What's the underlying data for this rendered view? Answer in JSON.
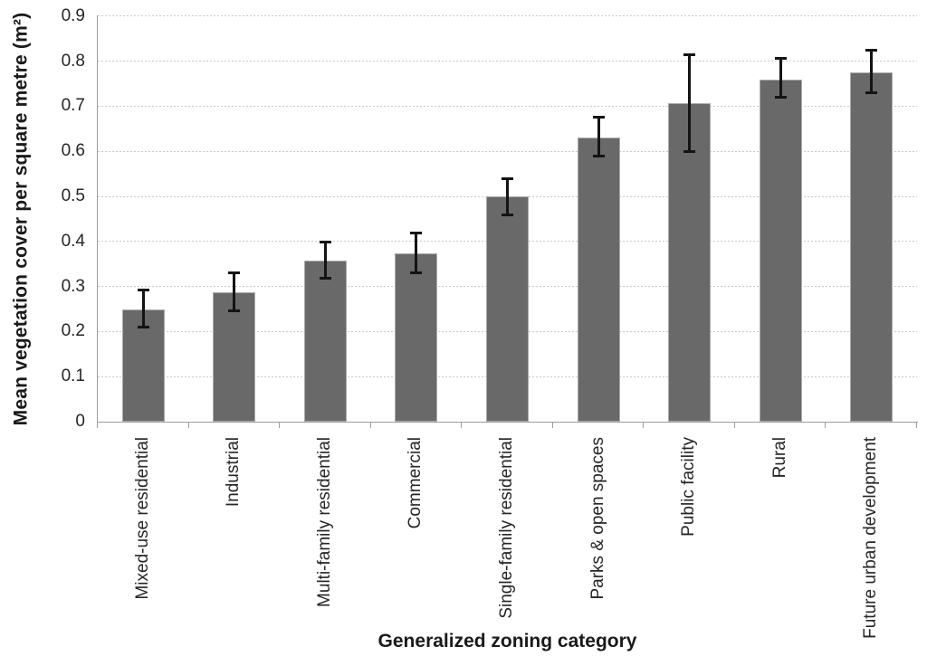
{
  "chart_data": {
    "type": "bar",
    "title": "",
    "xlabel": "Generalized zoning category",
    "ylabel": "Mean vegetation cover per square metre (m²)",
    "categories": [
      "Mixed-use residential",
      "Industrial",
      "Multi-family residential",
      "Commercial",
      "Single-family residential",
      "Parks & open spaces",
      "Public facility",
      "Rural",
      "Future urban development"
    ],
    "values": [
      0.25,
      0.287,
      0.357,
      0.373,
      0.499,
      0.63,
      0.707,
      0.76,
      0.776
    ],
    "error_low": [
      0.209,
      0.244,
      0.318,
      0.329,
      0.458,
      0.588,
      0.598,
      0.718,
      0.729
    ],
    "error_high": [
      0.294,
      0.331,
      0.4,
      0.419,
      0.54,
      0.677,
      0.816,
      0.807,
      0.825
    ],
    "ylim": [
      0,
      0.9
    ],
    "y_tick_labels": [
      "0",
      "0.1",
      "0.2",
      "0.3",
      "0.4",
      "0.5",
      "0.6",
      "0.7",
      "0.8",
      "0.9"
    ],
    "grid": "horizontal-dashed",
    "legend": "none",
    "colors": {
      "bar_fill": "#696969",
      "bar_border": "#ababab",
      "error_bar": "#141414",
      "gridline": "#c9c9c9",
      "axis_line": "#9d9d9d",
      "tick_text": "#262626",
      "title_text": "#1a1a1a",
      "background": "#ffffff"
    }
  }
}
